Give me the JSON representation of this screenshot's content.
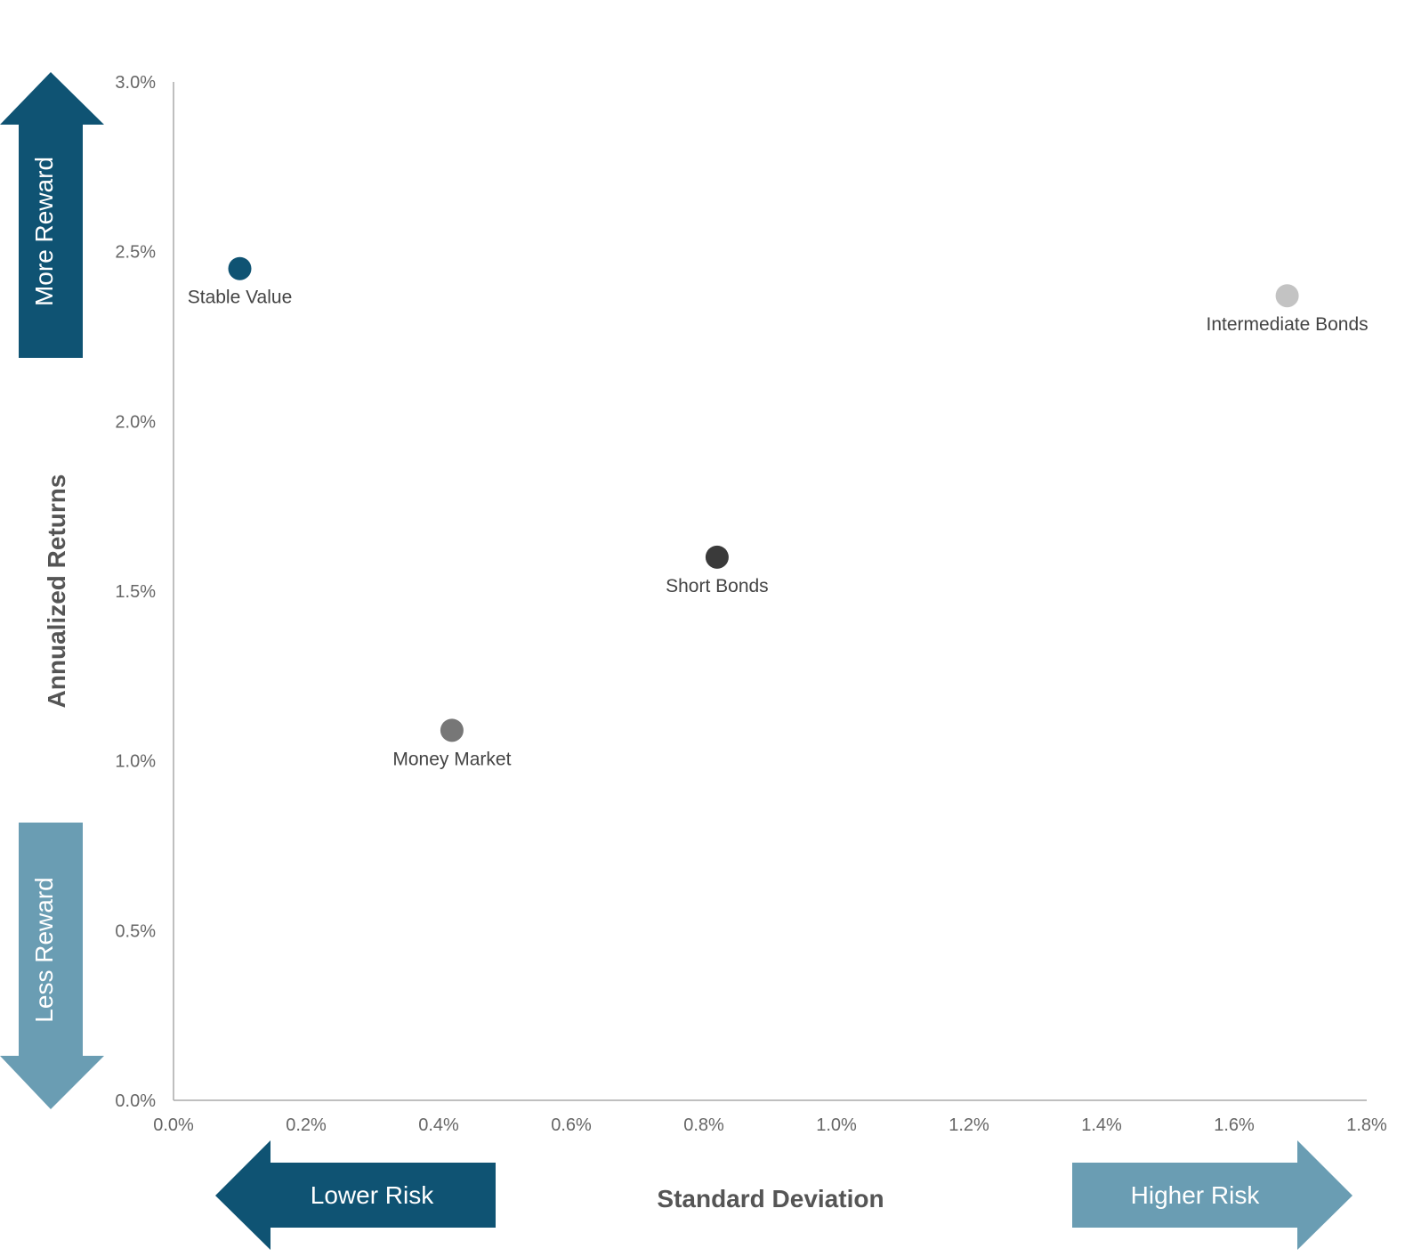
{
  "chart_data": {
    "type": "scatter",
    "xlabel": "Standard Deviation",
    "ylabel": "Annualized Returns",
    "xlim": [
      0,
      1.8
    ],
    "ylim": [
      0,
      3.0
    ],
    "x_ticks": [
      0.0,
      0.2,
      0.4,
      0.6,
      0.8,
      1.0,
      1.2,
      1.4,
      1.6,
      1.8
    ],
    "y_ticks": [
      0.0,
      0.5,
      1.0,
      1.5,
      2.0,
      2.5,
      3.0
    ],
    "x_tick_labels": [
      "0.0%",
      "0.2%",
      "0.4%",
      "0.6%",
      "0.8%",
      "1.0%",
      "1.2%",
      "1.4%",
      "1.6%",
      "1.8%"
    ],
    "y_tick_labels": [
      "0.0%",
      "0.5%",
      "1.0%",
      "1.5%",
      "2.0%",
      "2.5%",
      "3.0%"
    ],
    "grid": false,
    "points": [
      {
        "label": "Stable Value",
        "x": 0.1,
        "y": 2.45,
        "color": "#0f5373"
      },
      {
        "label": "Money Market",
        "x": 0.42,
        "y": 1.09,
        "color": "#777777"
      },
      {
        "label": "Short Bonds",
        "x": 0.82,
        "y": 1.6,
        "color": "#3a3a3a"
      },
      {
        "label": "Intermediate Bonds",
        "x": 1.68,
        "y": 2.37,
        "color": "#c3c3c3"
      }
    ],
    "arrows": {
      "more_reward": {
        "label": "More Reward",
        "color": "#0f5373"
      },
      "less_reward": {
        "label": "Less Reward",
        "color": "#6a9db3"
      },
      "lower_risk": {
        "label": "Lower Risk",
        "color": "#0f5373"
      },
      "higher_risk": {
        "label": "Higher Risk",
        "color": "#6a9db3"
      }
    }
  }
}
